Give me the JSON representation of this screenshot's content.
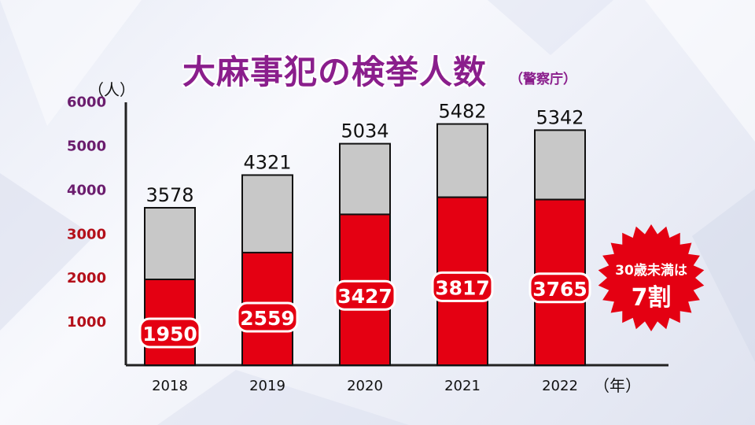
{
  "header": {
    "title": "大麻事犯の検挙人数",
    "source": "（警察庁）"
  },
  "axis_units": {
    "y": "（人）",
    "x": "（年）"
  },
  "badge": {
    "line1": "30歳未満は",
    "line2": "7割"
  },
  "colors": {
    "title": "#8a1e8c",
    "under30": "#e40012",
    "total": "#c8c8c8",
    "upper_ticks": "#6b1d6e",
    "lower_ticks": "#b4101a"
  },
  "chart_data": {
    "type": "bar",
    "stacked": true,
    "categories": [
      "2018",
      "2019",
      "2020",
      "2021",
      "2022"
    ],
    "series": [
      {
        "values": [
          1950,
          2559,
          3427,
          3817,
          3765
        ]
      },
      {
        "values": [
          1628,
          1762,
          1607,
          1665,
          1577
        ]
      }
    ],
    "totals": [
      3578,
      4321,
      5034,
      5482,
      5342
    ],
    "y_ticks": [
      1000,
      2000,
      3000,
      4000,
      5000,
      6000
    ],
    "ylim": [
      0,
      6000
    ],
    "grid": false
  }
}
